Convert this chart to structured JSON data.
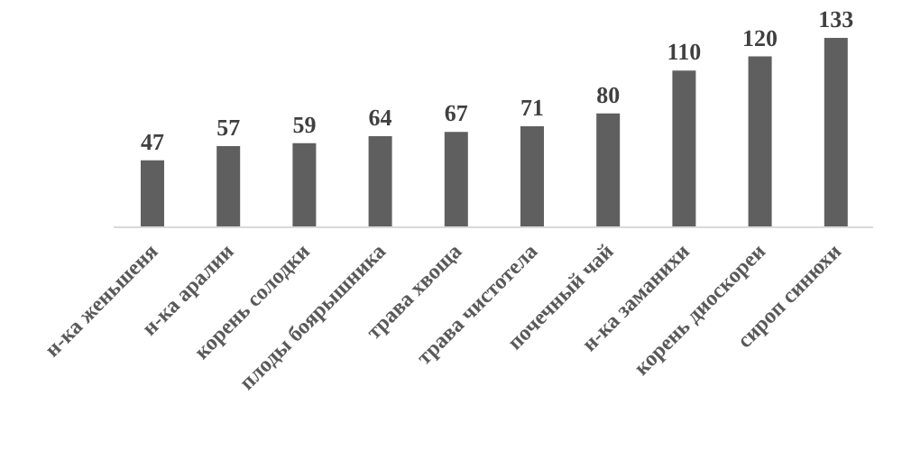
{
  "chart_data": {
    "type": "bar",
    "categories": [
      "н-ка женьшеня",
      "н-ка аралии",
      "корень солодки",
      "плоды боярышника",
      "трава хвоща",
      "трава чистотела",
      "почечный чай",
      "н-ка заманихи",
      "корень диоскореи",
      "сироп синюхи"
    ],
    "values": [
      47,
      57,
      59,
      64,
      67,
      71,
      80,
      110,
      120,
      133
    ],
    "color": "#5f5f5f",
    "data_labels": true,
    "grid": false,
    "legend": false
  }
}
